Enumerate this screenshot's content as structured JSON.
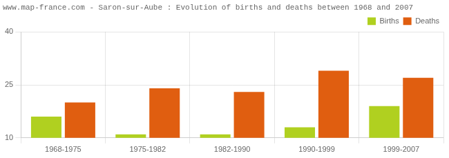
{
  "chart_data": {
    "type": "bar",
    "title": "www.map-france.com - Saron-sur-Aube : Evolution of births and deaths between 1968 and 2007",
    "categories": [
      "1968-1975",
      "1975-1982",
      "1982-1990",
      "1990-1999",
      "1999-2007"
    ],
    "series": [
      {
        "name": "Births",
        "color": "#b0d020",
        "values": [
          16,
          11,
          11,
          13,
          19
        ]
      },
      {
        "name": "Deaths",
        "color": "#e05e10",
        "values": [
          20,
          24,
          23,
          29,
          27
        ]
      }
    ],
    "ylim": [
      10,
      40
    ],
    "yticks": [
      10,
      25,
      40
    ],
    "grid": true,
    "legend": "upper right"
  }
}
